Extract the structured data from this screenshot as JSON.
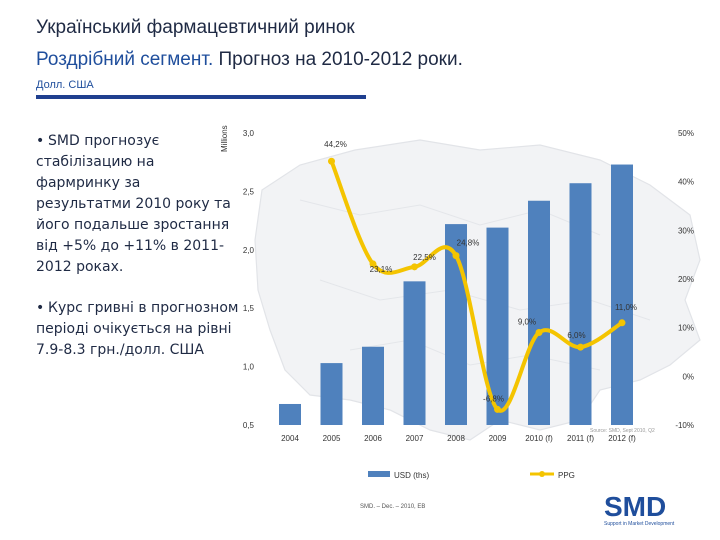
{
  "header": {
    "title_line1": "Український фармацевтичний ринок",
    "title_line2_blue": "Роздрібний сегмент.",
    "title_line2_dark": " Прогноз на 2010-2012 роки.",
    "subtitle": "Долл. США"
  },
  "bullets": [
    {
      "marker": "•",
      "text": "SMD прогнозує стабілізацию на фармринку за результатми 2010 року та його подальше зростання від +5% до +11% в 2011-2012 роках."
    },
    {
      "marker": "•",
      "text": "Курс гривні в прогнозном періоді очікується на рівні 7.9-8.3 грн./долл. США"
    }
  ],
  "chart_data": {
    "type": "bar+line",
    "y_axis_title": "Millions",
    "categories": [
      "2004",
      "2005",
      "2006",
      "2007",
      "2008",
      "2009",
      "2010 (f)",
      "2011 (f)",
      "2012 (f)"
    ],
    "bar_series": {
      "name": "USD (ths)",
      "color": "#4f81bd",
      "values": [
        0.68,
        1.03,
        1.17,
        1.73,
        2.22,
        2.19,
        2.42,
        2.57,
        2.73
      ]
    },
    "line_series": {
      "name": "PPG",
      "color": "#f4c400",
      "values": [
        44.2,
        23.1,
        22.5,
        24.8,
        -6.8,
        9.0,
        6.0,
        11.0
      ],
      "labels": [
        "44,2%",
        "23,1%",
        "22,5%",
        "24,8%",
        "-6,8%",
        "9,0%",
        "6,0%",
        "11,0%"
      ]
    },
    "left_axis": {
      "min": 0.5,
      "max": 3.0,
      "ticks": [
        "0,5",
        "1,0",
        "1,5",
        "2,0",
        "2,5",
        "3,0"
      ]
    },
    "right_axis": {
      "min": -10,
      "max": 50,
      "ticks": [
        "-10%",
        "0%",
        "10%",
        "20%",
        "30%",
        "40%",
        "50%"
      ]
    },
    "legend_position": "bottom"
  },
  "footer": {
    "source_note": "Source: SMD, Sept 2010, Q2",
    "copyright": "SMD. – Dec. – 2010, EB",
    "logo_text": "SMD",
    "logo_tagline": "Support in Market Development"
  },
  "colors": {
    "accent": "#1f4e9c",
    "bar": "#4f81bd",
    "line": "#f4c400",
    "text": "#1f2a44"
  }
}
